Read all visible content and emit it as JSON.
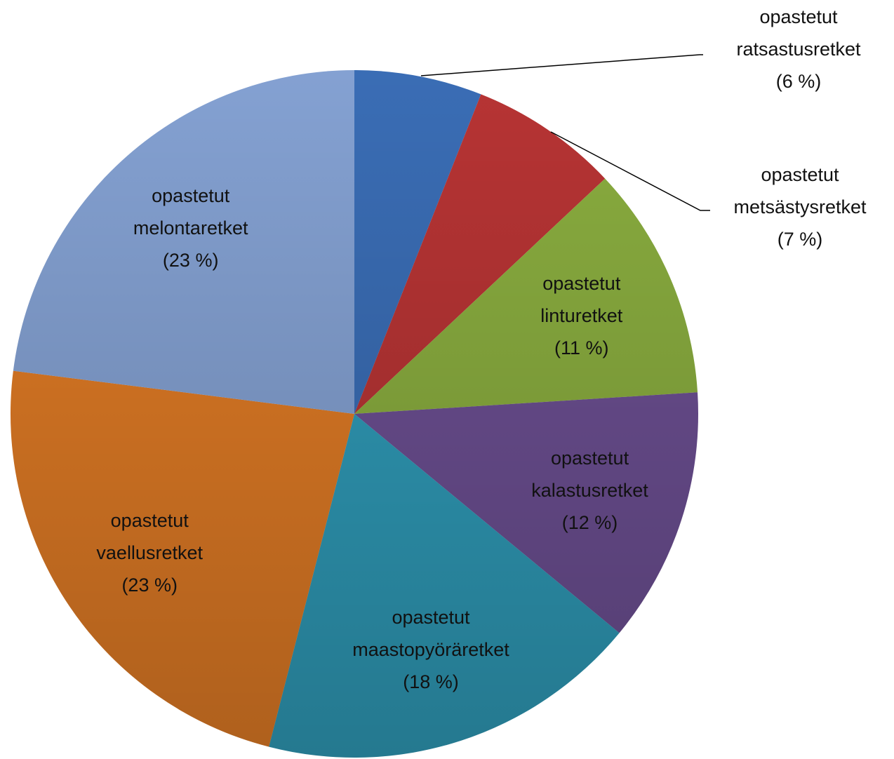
{
  "chart_data": {
    "type": "pie",
    "categories": [
      "opastetut ratsastusretket",
      "opastetut metsästysretket",
      "opastetut linturetket",
      "opastetut kalastusretket",
      "opastetut maastopyöräretket",
      "opastetut vaellusretket",
      "opastetut melontaretket"
    ],
    "values": [
      6,
      7,
      11,
      12,
      18,
      23,
      23
    ],
    "value_labels": [
      "(6 %)",
      "(7 %)",
      "(11 %)",
      "(12 %)",
      "(18 %)",
      "(23 %)",
      "(23 %)"
    ],
    "colors": [
      "#3a6db5",
      "#b73434",
      "#8aad3f",
      "#6c4f92",
      "#2f9bb8",
      "#e07b25",
      "#84a1d2"
    ]
  }
}
